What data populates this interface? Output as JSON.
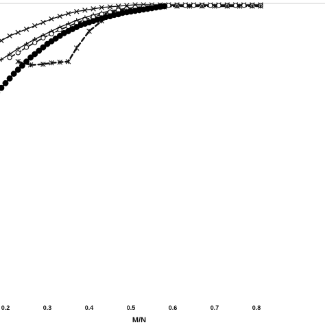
{
  "chart_data": {
    "type": "line",
    "title": "",
    "xlabel": "M/N",
    "ylabel": "",
    "xlim": [
      0.17,
      0.81
    ],
    "ylim": [
      0.58,
      1.0
    ],
    "x_ticks": [
      "0.2",
      "0.3",
      "0.4",
      "0.5",
      "0.6",
      "0.7",
      "0.8"
    ],
    "series": [
      {
        "marker": "x",
        "color": "#111111",
        "x": [
          0.17,
          0.19,
          0.21,
          0.23,
          0.25,
          0.27,
          0.29,
          0.31,
          0.33,
          0.35,
          0.37,
          0.39,
          0.41,
          0.43,
          0.45,
          0.47,
          0.49,
          0.51,
          0.53,
          0.55,
          0.57,
          0.59,
          0.61,
          0.63,
          0.65,
          0.67,
          0.69,
          0.71,
          0.73,
          0.75,
          0.77,
          0.79,
          0.81
        ],
        "y": [
          0.938,
          0.946,
          0.953,
          0.958,
          0.963,
          0.968,
          0.973,
          0.978,
          0.982,
          0.986,
          0.989,
          0.991,
          0.993,
          0.995,
          0.996,
          0.997,
          0.998,
          0.999,
          0.999,
          0.999,
          0.999,
          0.999,
          0.999,
          0.999,
          0.999,
          0.999,
          0.999,
          0.999,
          0.999,
          0.999,
          0.999,
          0.999,
          0.999
        ]
      },
      {
        "marker": "plus",
        "color": "#111111",
        "x": [
          0.17,
          0.19,
          0.21,
          0.23,
          0.25,
          0.27,
          0.29,
          0.31,
          0.33,
          0.35,
          0.37,
          0.39,
          0.41,
          0.43,
          0.45,
          0.47,
          0.49,
          0.51,
          0.53,
          0.55,
          0.57,
          0.59,
          0.61,
          0.63,
          0.65,
          0.67,
          0.69,
          0.71,
          0.73,
          0.75,
          0.77,
          0.79,
          0.81
        ],
        "y": [
          0.91,
          0.918,
          0.926,
          0.934,
          0.941,
          0.948,
          0.954,
          0.96,
          0.966,
          0.971,
          0.976,
          0.98,
          0.984,
          0.987,
          0.99,
          0.992,
          0.994,
          0.995,
          0.996,
          0.997,
          0.997,
          0.998,
          0.998,
          0.998,
          0.998,
          0.998,
          0.998,
          0.998,
          0.998,
          0.998,
          0.998,
          0.998,
          0.998
        ]
      },
      {
        "marker": "circle-open",
        "color": "#111111",
        "x": [
          0.21,
          0.23,
          0.25,
          0.27,
          0.29,
          0.31,
          0.33,
          0.35,
          0.37,
          0.39,
          0.41,
          0.43,
          0.45,
          0.47,
          0.49,
          0.51,
          0.53,
          0.55,
          0.57,
          0.59,
          0.61,
          0.63,
          0.65,
          0.67,
          0.69,
          0.71,
          0.73,
          0.75,
          0.77,
          0.79,
          0.81
        ],
        "y": [
          0.921,
          0.928,
          0.936,
          0.943,
          0.95,
          0.956,
          0.962,
          0.967,
          0.972,
          0.977,
          0.981,
          0.985,
          0.988,
          0.991,
          0.993,
          0.995,
          0.996,
          0.997,
          0.998,
          0.998,
          0.998,
          0.998,
          0.998,
          0.998,
          0.998,
          0.998,
          0.998,
          0.998,
          0.998,
          0.998,
          0.998
        ]
      },
      {
        "marker": "asterisk",
        "color": "#111111",
        "x": [
          0.23,
          0.26,
          0.29,
          0.31,
          0.33,
          0.35,
          0.37,
          0.4,
          0.43,
          0.46,
          0.49,
          0.52,
          0.55,
          0.58,
          0.61,
          0.64,
          0.67,
          0.7,
          0.73,
          0.76,
          0.79,
          0.81
        ],
        "y": [
          0.915,
          0.91,
          0.911,
          0.913,
          0.914,
          0.915,
          0.935,
          0.96,
          0.975,
          0.985,
          0.99,
          0.993,
          0.995,
          0.996,
          0.997,
          0.997,
          0.997,
          0.997,
          0.997,
          0.997,
          0.997,
          0.997
        ]
      },
      {
        "marker": "circle-filled",
        "color": "#000000",
        "x": [
          0.17,
          0.18,
          0.19,
          0.2,
          0.21,
          0.22,
          0.23,
          0.24,
          0.25,
          0.26,
          0.27,
          0.28,
          0.29,
          0.3,
          0.31,
          0.32,
          0.33,
          0.34,
          0.35,
          0.36,
          0.37,
          0.38,
          0.39,
          0.4,
          0.41,
          0.42,
          0.43,
          0.44,
          0.45,
          0.46,
          0.47,
          0.48,
          0.49,
          0.5,
          0.51,
          0.52,
          0.53,
          0.54,
          0.55,
          0.56,
          0.57,
          0.58
        ],
        "y": [
          0.862,
          0.869,
          0.876,
          0.883,
          0.89,
          0.897,
          0.903,
          0.909,
          0.915,
          0.921,
          0.926,
          0.931,
          0.936,
          0.941,
          0.945,
          0.949,
          0.953,
          0.957,
          0.96,
          0.963,
          0.966,
          0.969,
          0.971,
          0.973,
          0.975,
          0.977,
          0.979,
          0.981,
          0.982,
          0.984,
          0.985,
          0.987,
          0.988,
          0.989,
          0.99,
          0.991,
          0.992,
          0.993,
          0.994,
          0.995,
          0.996,
          0.997
        ]
      }
    ],
    "grid": false,
    "legend": "none"
  }
}
